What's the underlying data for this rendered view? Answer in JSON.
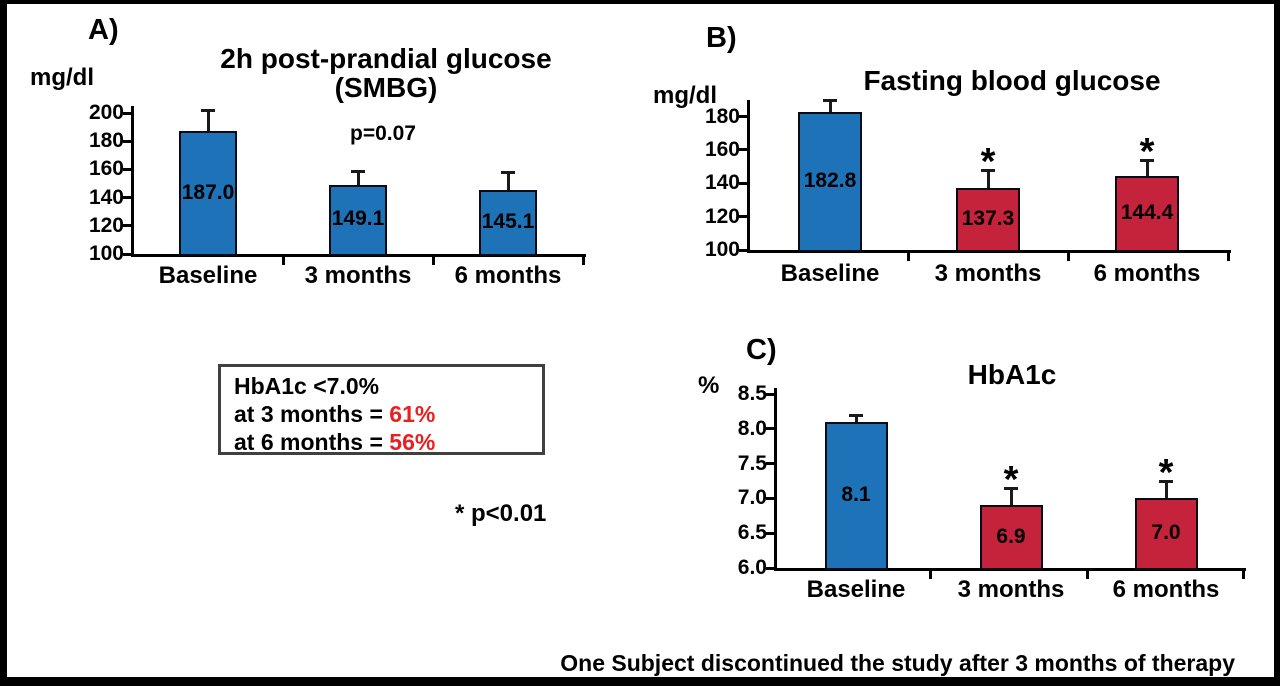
{
  "colors": {
    "bar_blue": "#1E73B8",
    "bar_red": "#C5233C",
    "highlight_red": "#EA1F1F",
    "axis_black": "#000000"
  },
  "notes": {
    "significance": "* p<0.01",
    "star": "*",
    "footer": "One Subject discontinued the study after 3 months of therapy"
  },
  "summary_box": {
    "line1": "HbA1c <7.0%",
    "line2_prefix": "at 3 months = ",
    "line2_value": "61%",
    "line3_prefix": "at 6 months = ",
    "line3_value": "56%"
  },
  "chart_data": [
    {
      "id": "A",
      "panel_label": "A)",
      "type": "bar",
      "title": "2h post-prandial glucose",
      "subtitle": "(SMBG)",
      "ylabel": "mg/dl",
      "annotation": "p=0.07",
      "categories": [
        "Baseline",
        "3 months",
        "6 months"
      ],
      "values": [
        187.0,
        149.1,
        145.1
      ],
      "value_labels": [
        "187.0",
        "149.1",
        "145.1"
      ],
      "error_top": [
        202,
        159,
        158
      ],
      "bar_colors": [
        "blue",
        "blue",
        "blue"
      ],
      "significant": [
        false,
        false,
        false
      ],
      "yticks": [
        100,
        120,
        140,
        160,
        180,
        200
      ],
      "ytick_labels": [
        "100",
        "120",
        "140",
        "160",
        "180",
        "200"
      ],
      "ylim": [
        100,
        205
      ]
    },
    {
      "id": "B",
      "panel_label": "B)",
      "type": "bar",
      "title": "Fasting blood glucose",
      "subtitle": "",
      "ylabel": "mg/dl",
      "annotation": "",
      "categories": [
        "Baseline",
        "3 months",
        "6 months"
      ],
      "values": [
        182.8,
        137.3,
        144.4
      ],
      "value_labels": [
        "182.8",
        "137.3",
        "144.4"
      ],
      "error_top": [
        190,
        148,
        154
      ],
      "bar_colors": [
        "blue",
        "red",
        "red"
      ],
      "significant": [
        false,
        true,
        true
      ],
      "yticks": [
        100,
        120,
        140,
        160,
        180
      ],
      "ytick_labels": [
        "100",
        "120",
        "140",
        "160",
        "180"
      ],
      "ylim": [
        100,
        190
      ]
    },
    {
      "id": "C",
      "panel_label": "C)",
      "type": "bar",
      "title": "HbA1c",
      "subtitle": "",
      "ylabel": "%",
      "annotation": "",
      "categories": [
        "Baseline",
        "3 months",
        "6 months"
      ],
      "values": [
        8.1,
        6.9,
        7.0
      ],
      "value_labels": [
        "8.1",
        "6.9",
        "7.0"
      ],
      "error_top": [
        8.2,
        7.15,
        7.25
      ],
      "bar_colors": [
        "blue",
        "red",
        "red"
      ],
      "significant": [
        false,
        true,
        true
      ],
      "yticks": [
        6.0,
        6.5,
        7.0,
        7.5,
        8.0,
        8.5
      ],
      "ytick_labels": [
        "6.0",
        "6.5",
        "7.0",
        "7.5",
        "8.0",
        "8.5"
      ],
      "ylim": [
        6.0,
        8.6
      ]
    }
  ]
}
